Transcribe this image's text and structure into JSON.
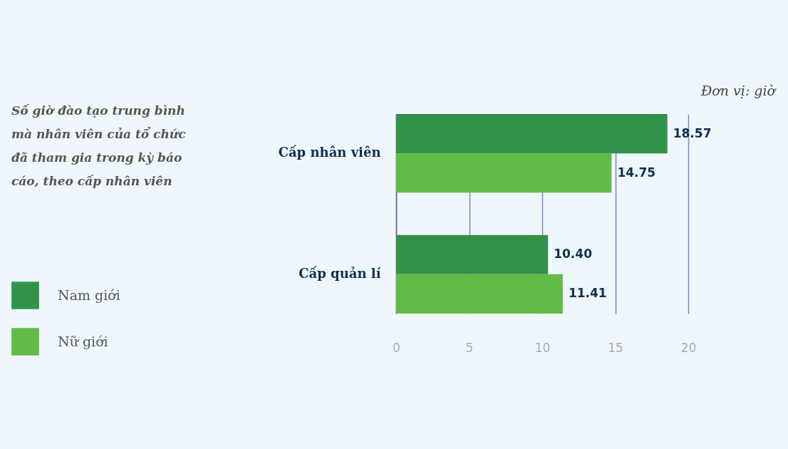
{
  "chart_data": {
    "type": "bar",
    "orientation": "horizontal",
    "title": "Số giờ đào tạo trung bình mà nhân viên của tổ chức đã tham gia trong kỳ báo cáo, theo cấp nhân viên",
    "annotations": [
      "Đơn vị: giờ"
    ],
    "categories": [
      "Cấp nhân viên",
      "Cấp quản lí"
    ],
    "series": [
      {
        "name": "Nam giới",
        "color": "#33924a",
        "values": [
          18.57,
          10.4
        ],
        "value_labels": [
          "18.57",
          "10.40"
        ]
      },
      {
        "name": "Nữ giới",
        "color": "#62bb47",
        "values": [
          14.75,
          11.41
        ],
        "value_labels": [
          "14.75",
          "11.41"
        ]
      }
    ],
    "xlim": [
      0,
      20
    ],
    "xticks": [
      0,
      5,
      10,
      15,
      20
    ],
    "grid": "x",
    "legend": "left"
  }
}
